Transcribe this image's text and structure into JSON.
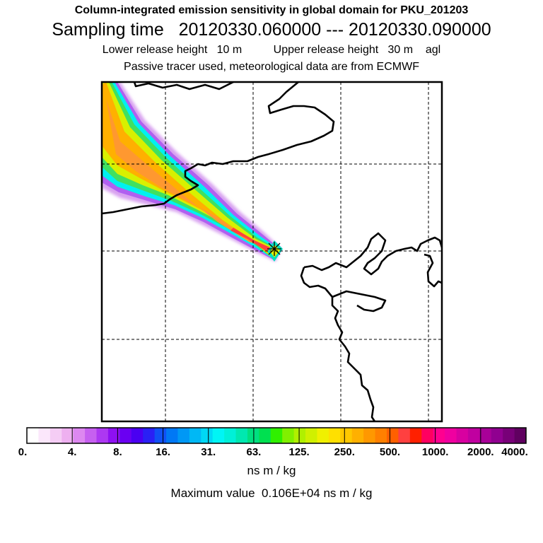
{
  "header": {
    "title": "Column-integrated emission sensitivity in global domain for PKU_201203",
    "sampling": "Sampling time   20120330.060000 --- 20120330.090000",
    "release": "Lower release height   10 m          Upper release height   30 m    agl",
    "tracer": "Passive tracer used, meteorological data are from ECMWF"
  },
  "colorbar": {
    "ticks": [
      "0.",
      "4.",
      "8.",
      "16.",
      "31.",
      "63.",
      "125.",
      "250.",
      "500.",
      "1000.",
      "2000.",
      "4000."
    ],
    "colors": [
      "#ffffff",
      "#fbe7fb",
      "#f5cdf5",
      "#eeb0f0",
      "#dd88f0",
      "#c660f0",
      "#ad38f2",
      "#8e10f2",
      "#6a00f2",
      "#4a00f2",
      "#2a20f5",
      "#1050f5",
      "#0078f5",
      "#0098f5",
      "#00b8f5",
      "#00d8f5",
      "#00f5f5",
      "#00f0d8",
      "#00e8b0",
      "#00e080",
      "#00e050",
      "#30f000",
      "#80f000",
      "#b0f000",
      "#d0f000",
      "#f0f000",
      "#ffe000",
      "#ffc800",
      "#ffb000",
      "#ff9800",
      "#ff8000",
      "#ff6000",
      "#ff4040",
      "#ff2000",
      "#ff0060",
      "#ff0090",
      "#f000a0",
      "#d800a0",
      "#c000a0",
      "#a80098",
      "#900090",
      "#780078",
      "#600060"
    ],
    "unit": "ns m / kg",
    "max_value": "Maximum value  0.106E+04 ns m / kg"
  },
  "map": {
    "release_site": "release-marker-icon"
  }
}
